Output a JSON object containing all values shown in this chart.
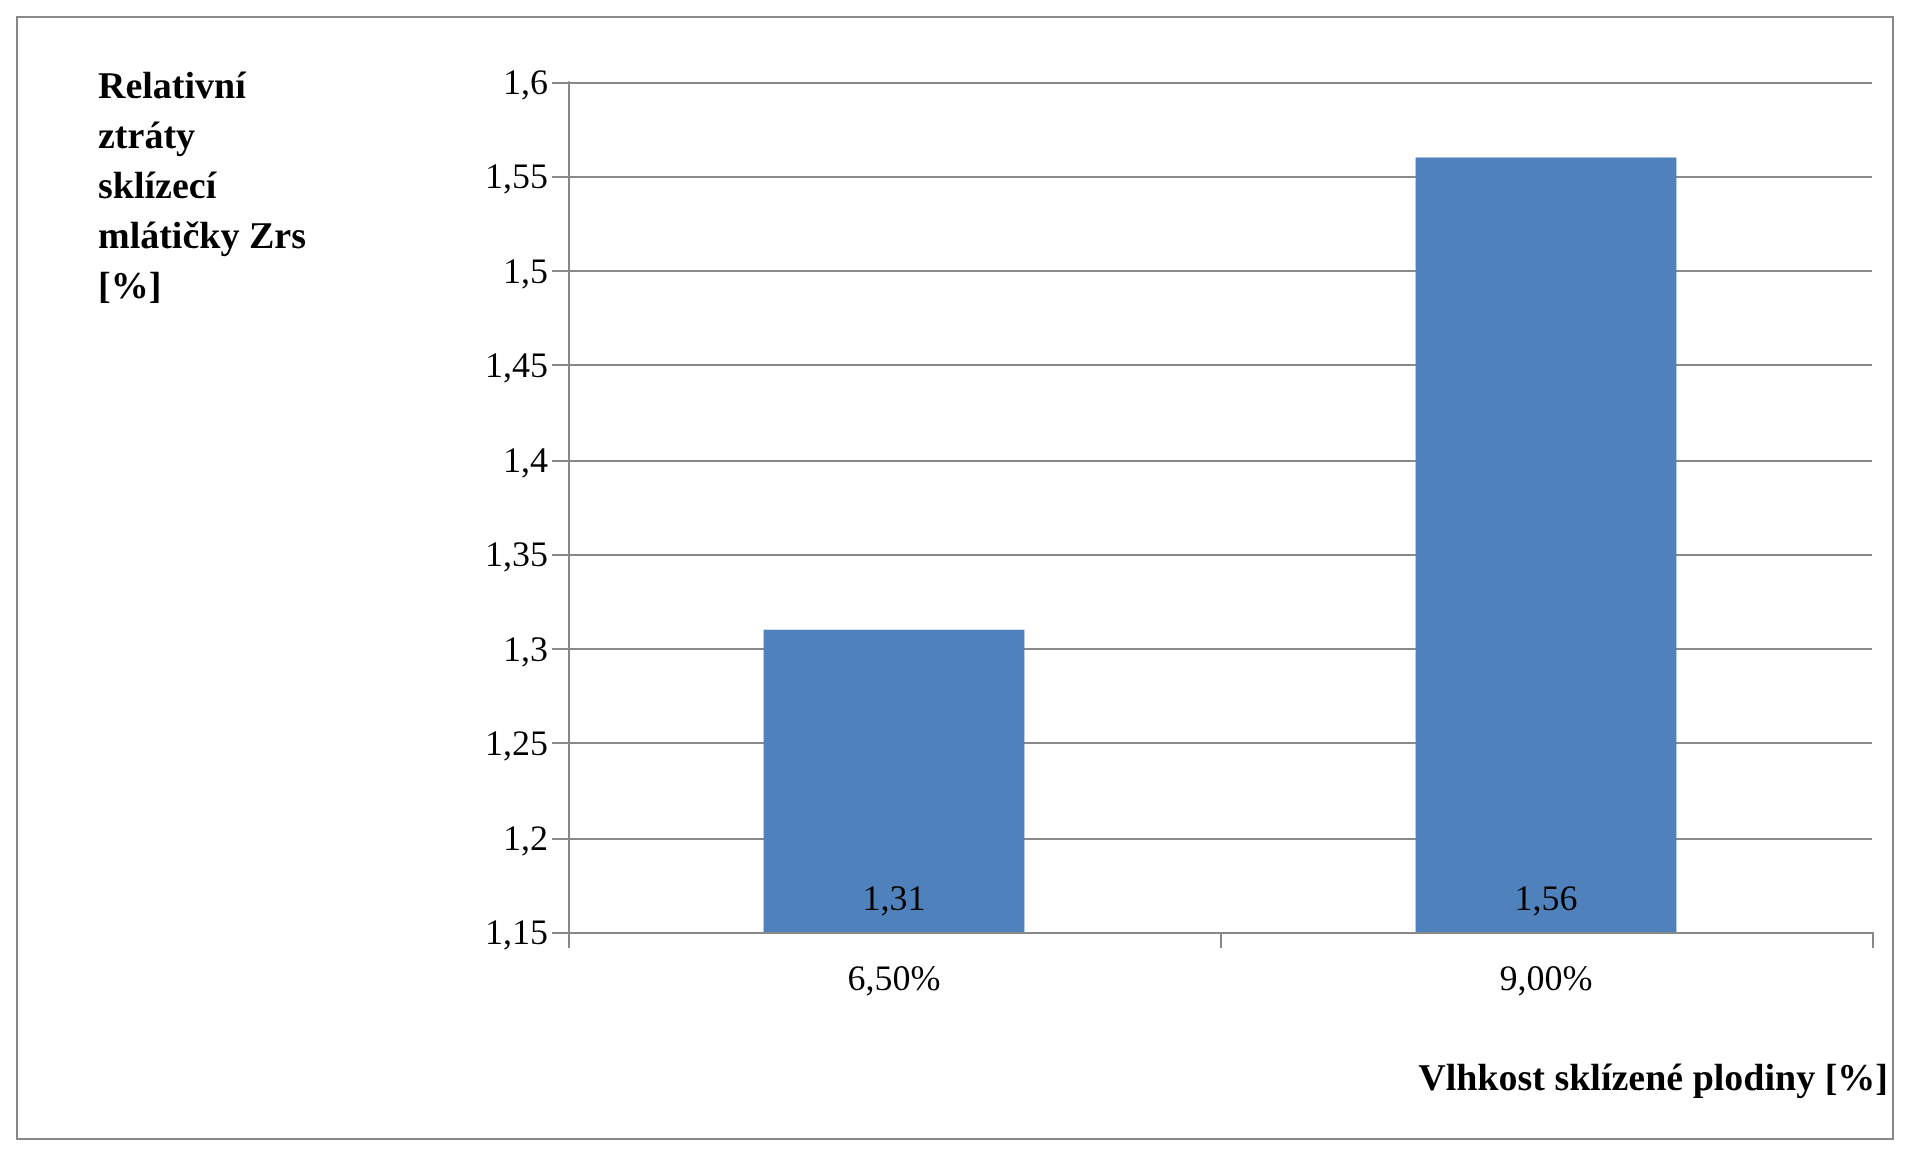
{
  "chart_data": {
    "type": "bar",
    "xlabel": "Vlhkost sklízené plodiny [%]",
    "ylabel": "Relativní ztráty sklízecí mlátičky Zrs [%]",
    "categories": [
      "6,50%",
      "9,00%"
    ],
    "values": [
      1.31,
      1.56
    ],
    "value_labels": [
      "1,31",
      "1,56"
    ],
    "color": "#4f81bd",
    "ylim": [
      1.15,
      1.6
    ],
    "yticks": [
      {
        "value": 1.15,
        "label": "1,15"
      },
      {
        "value": 1.2,
        "label": "1,2"
      },
      {
        "value": 1.25,
        "label": "1,25"
      },
      {
        "value": 1.3,
        "label": "1,3"
      },
      {
        "value": 1.35,
        "label": "1,35"
      },
      {
        "value": 1.4,
        "label": "1,4"
      },
      {
        "value": 1.45,
        "label": "1,45"
      },
      {
        "value": 1.5,
        "label": "1,5"
      },
      {
        "value": 1.55,
        "label": "1,55"
      },
      {
        "value": 1.6,
        "label": "1,6"
      }
    ],
    "grid": "y"
  }
}
